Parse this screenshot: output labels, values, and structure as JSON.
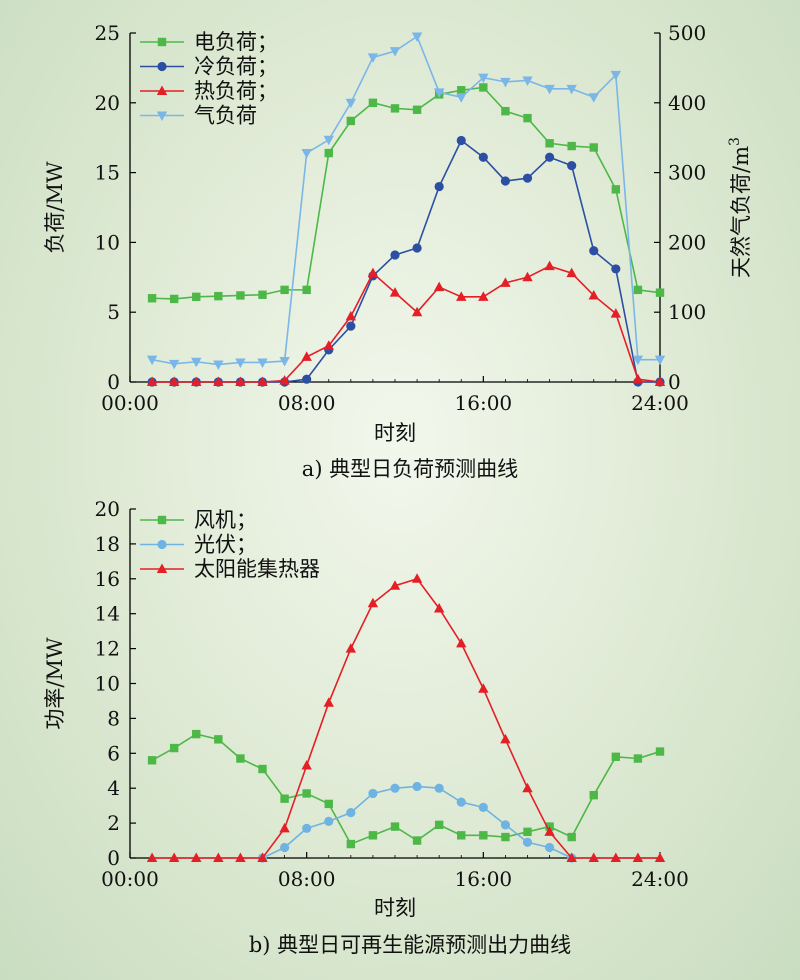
{
  "chart_data": [
    {
      "type": "line",
      "title": "a) 典型日负荷预测曲线",
      "xlabel": "时刻",
      "ylabel": "负荷/MW",
      "y2label": "天然气负荷/m",
      "y2label_sup": "3",
      "xlim": [
        0,
        24
      ],
      "ylim": [
        0,
        25
      ],
      "y2lim": [
        0,
        500
      ],
      "xticks": [
        {
          "v": 0,
          "label": "00:00"
        },
        {
          "v": 8,
          "label": "08:00"
        },
        {
          "v": 16,
          "label": "16:00"
        },
        {
          "v": 24,
          "label": "24:00"
        }
      ],
      "yticks": [
        0,
        5,
        10,
        15,
        20,
        25
      ],
      "y2ticks": [
        0,
        100,
        200,
        300,
        400,
        500
      ],
      "legend_position": "top-left",
      "series": [
        {
          "name": "电负荷；",
          "color": "#4db848",
          "marker": "square",
          "axis": "left",
          "x": [
            1,
            2,
            3,
            4,
            5,
            6,
            7,
            8,
            9,
            10,
            11,
            12,
            13,
            14,
            15,
            16,
            17,
            18,
            19,
            20,
            21,
            22,
            23,
            24
          ],
          "y": [
            6.0,
            5.95,
            6.1,
            6.15,
            6.2,
            6.25,
            6.6,
            6.6,
            16.4,
            18.7,
            20.0,
            19.6,
            19.5,
            20.6,
            20.9,
            21.1,
            19.4,
            18.9,
            17.1,
            16.9,
            16.8,
            13.8,
            6.6,
            6.4
          ]
        },
        {
          "name": "冷负荷；",
          "color": "#2c4fa3",
          "marker": "circle",
          "axis": "left",
          "x": [
            1,
            2,
            3,
            4,
            5,
            6,
            7,
            8,
            9,
            10,
            11,
            12,
            13,
            14,
            15,
            16,
            17,
            18,
            19,
            20,
            21,
            22,
            23,
            24
          ],
          "y": [
            0,
            0,
            0,
            0,
            0,
            0,
            0,
            0.2,
            2.3,
            4.0,
            7.6,
            9.1,
            9.6,
            14.0,
            17.3,
            16.1,
            14.4,
            14.6,
            16.1,
            15.5,
            9.4,
            8.1,
            0,
            0
          ]
        },
        {
          "name": "热负荷；",
          "color": "#e41f26",
          "marker": "triangle",
          "axis": "left",
          "x": [
            1,
            2,
            3,
            4,
            5,
            6,
            7,
            8,
            9,
            10,
            11,
            12,
            13,
            14,
            15,
            16,
            17,
            18,
            19,
            20,
            21,
            22,
            23,
            24
          ],
          "y": [
            0,
            0,
            0,
            0,
            0,
            0,
            0.1,
            1.8,
            2.6,
            4.7,
            7.8,
            6.4,
            5.0,
            6.8,
            6.1,
            6.1,
            7.1,
            7.5,
            8.3,
            7.8,
            6.2,
            4.9,
            0.2,
            0
          ]
        },
        {
          "name": "气负荷",
          "color": "#7ab6e8",
          "marker": "triangle-down",
          "axis": "right",
          "x": [
            1,
            2,
            3,
            4,
            5,
            6,
            7,
            8,
            9,
            10,
            11,
            12,
            13,
            14,
            15,
            16,
            17,
            18,
            19,
            20,
            21,
            22,
            23,
            24
          ],
          "y": [
            32,
            26,
            29,
            25,
            28,
            28,
            30,
            328,
            347,
            400,
            465,
            474,
            495,
            415,
            408,
            436,
            430,
            432,
            420,
            420,
            408,
            440,
            32,
            32
          ]
        }
      ]
    },
    {
      "type": "line",
      "title": "b) 典型日可再生能源预测出力曲线",
      "xlabel": "时刻",
      "ylabel": "功率/MW",
      "xlim": [
        0,
        24
      ],
      "ylim": [
        0,
        20
      ],
      "xticks": [
        {
          "v": 0,
          "label": "00:00"
        },
        {
          "v": 8,
          "label": "08:00"
        },
        {
          "v": 16,
          "label": "16:00"
        },
        {
          "v": 24,
          "label": "24:00"
        }
      ],
      "yticks": [
        0,
        2,
        4,
        6,
        8,
        10,
        12,
        14,
        16,
        18,
        20
      ],
      "legend_position": "top-left",
      "series": [
        {
          "name": "风机；",
          "color": "#4db848",
          "marker": "square",
          "x": [
            1,
            2,
            3,
            4,
            5,
            6,
            7,
            8,
            9,
            10,
            11,
            12,
            13,
            14,
            15,
            16,
            17,
            18,
            19,
            20,
            21,
            22,
            23,
            24
          ],
          "y": [
            5.6,
            6.3,
            7.1,
            6.8,
            5.7,
            5.1,
            3.4,
            3.7,
            3.1,
            0.8,
            1.3,
            1.8,
            1.0,
            1.9,
            1.3,
            1.3,
            1.2,
            1.5,
            1.8,
            1.2,
            3.6,
            5.8,
            5.7,
            6.1
          ]
        },
        {
          "name": "光伏；",
          "color": "#6fb3e3",
          "marker": "circle",
          "x": [
            6,
            7,
            8,
            9,
            10,
            11,
            12,
            13,
            14,
            15,
            16,
            17,
            18,
            19,
            20
          ],
          "y": [
            0,
            0.6,
            1.7,
            2.1,
            2.6,
            3.7,
            4.0,
            4.1,
            4.0,
            3.2,
            2.9,
            1.9,
            0.9,
            0.6,
            0
          ]
        },
        {
          "name": "太阳能集热器",
          "color": "#e41f26",
          "marker": "triangle",
          "x": [
            1,
            2,
            3,
            4,
            5,
            6,
            7,
            8,
            9,
            10,
            11,
            12,
            13,
            14,
            15,
            16,
            17,
            18,
            19,
            20,
            21,
            22,
            23,
            24
          ],
          "y": [
            0,
            0,
            0,
            0,
            0,
            0,
            1.7,
            5.3,
            8.9,
            12.0,
            14.6,
            15.6,
            16.0,
            14.3,
            12.3,
            9.7,
            6.8,
            4.0,
            1.5,
            0,
            0,
            0,
            0,
            0
          ]
        }
      ]
    }
  ]
}
